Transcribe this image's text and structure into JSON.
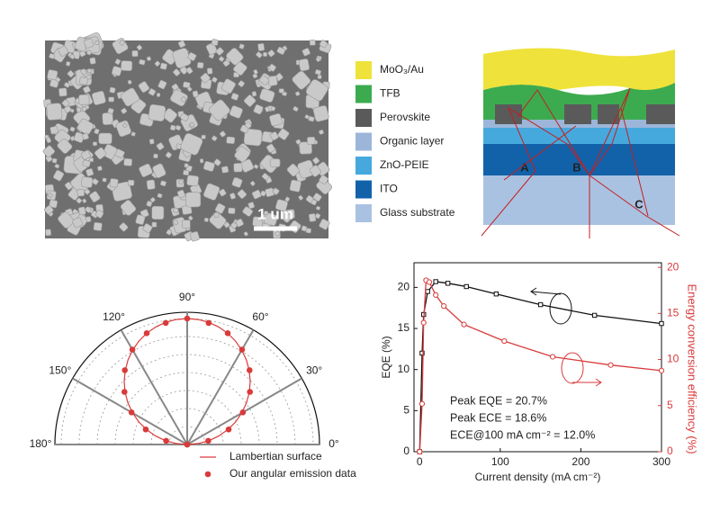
{
  "sem": {
    "scale_label": "1 um"
  },
  "schematic": {
    "layers": [
      {
        "label": "MoO₃/Au",
        "color": "#efe23a"
      },
      {
        "label": "TFB",
        "color": "#3cab4f"
      },
      {
        "label": "Perovskite",
        "color": "#5a5a5a"
      },
      {
        "label": "Organic layer",
        "color": "#9cb6d9"
      },
      {
        "label": "ZnO-PEIE",
        "color": "#46a9de"
      },
      {
        "label": "ITO",
        "color": "#1262aa"
      },
      {
        "label": "Glass substrate",
        "color": "#aac2e2"
      }
    ],
    "points": [
      "A",
      "B",
      "C"
    ]
  },
  "chart_data": [
    {
      "type": "polar",
      "thetaticks": [
        {
          "value": 0,
          "label": "0°"
        },
        {
          "value": 30,
          "label": "30°"
        },
        {
          "value": 60,
          "label": "60°"
        },
        {
          "value": 90,
          "label": "90°"
        },
        {
          "value": 120,
          "label": "120°"
        },
        {
          "value": 150,
          "label": "150°"
        },
        {
          "value": 180,
          "label": "180°"
        }
      ],
      "rlim": [
        0,
        1.05
      ],
      "series": [
        {
          "name": "Lambertian surface",
          "color": "#d93a3a",
          "kind": "line",
          "theta": [
            0,
            5,
            10,
            15,
            20,
            25,
            30,
            35,
            40,
            45,
            50,
            55,
            60,
            65,
            70,
            75,
            80,
            85,
            90,
            95,
            100,
            105,
            110,
            115,
            120,
            125,
            130,
            135,
            140,
            145,
            150,
            155,
            160,
            165,
            170,
            175,
            180
          ],
          "values": [
            0,
            0.087,
            0.174,
            0.259,
            0.342,
            0.423,
            0.5,
            0.574,
            0.643,
            0.707,
            0.766,
            0.819,
            0.866,
            0.906,
            0.94,
            0.966,
            0.985,
            0.996,
            1,
            0.996,
            0.985,
            0.966,
            0.94,
            0.906,
            0.866,
            0.819,
            0.766,
            0.707,
            0.643,
            0.574,
            0.5,
            0.423,
            0.342,
            0.259,
            0.174,
            0.087,
            0
          ]
        },
        {
          "name": "Our angular emission data",
          "color": "#d93a3a",
          "kind": "points",
          "theta": [
            0,
            10,
            20,
            30,
            40,
            50,
            60,
            70,
            80,
            90,
            100,
            110,
            120,
            130,
            140,
            150,
            160,
            170,
            180
          ],
          "values": [
            0,
            0.17,
            0.35,
            0.51,
            0.65,
            0.77,
            0.87,
            0.94,
            0.98,
            1.0,
            0.98,
            0.94,
            0.87,
            0.77,
            0.65,
            0.51,
            0.35,
            0.17,
            0
          ]
        }
      ]
    },
    {
      "type": "line",
      "xlabel": "Current density (mA cm⁻²)",
      "ylabel": "EQE (%)",
      "y2label": "Energy conversion efficiency (%)",
      "xlim": [
        -7,
        300
      ],
      "xticks": [
        0,
        100,
        200,
        300
      ],
      "ylim": [
        0,
        23
      ],
      "yticks": [
        0,
        5,
        10,
        15,
        20
      ],
      "y2lim": [
        0,
        20.5
      ],
      "y2ticks": [
        0,
        5,
        10,
        15,
        20
      ],
      "annotations": [
        "Peak EQE = 20.7%",
        "Peak ECE = 18.6%",
        "ECE@100 mA cm⁻² = 12.0%"
      ],
      "series": [
        {
          "name": "EQE",
          "color": "#111111",
          "marker": "square",
          "x": [
            0,
            3,
            5,
            10,
            20,
            35,
            58,
            95,
            150,
            217,
            300
          ],
          "values": [
            0,
            12,
            16.7,
            19.5,
            20.7,
            20.5,
            20.1,
            19.2,
            17.9,
            16.6,
            15.6
          ]
        },
        {
          "name": "ECE",
          "color": "#d93a3a",
          "marker": "circle",
          "axis": "y2",
          "x": [
            0,
            3,
            5,
            8,
            12,
            20,
            30,
            55,
            105,
            165,
            237,
            300
          ],
          "values": [
            0,
            5.2,
            14,
            18.6,
            18.4,
            17,
            15.8,
            13.8,
            12.0,
            10.3,
            9.4,
            8.8
          ]
        }
      ]
    }
  ]
}
